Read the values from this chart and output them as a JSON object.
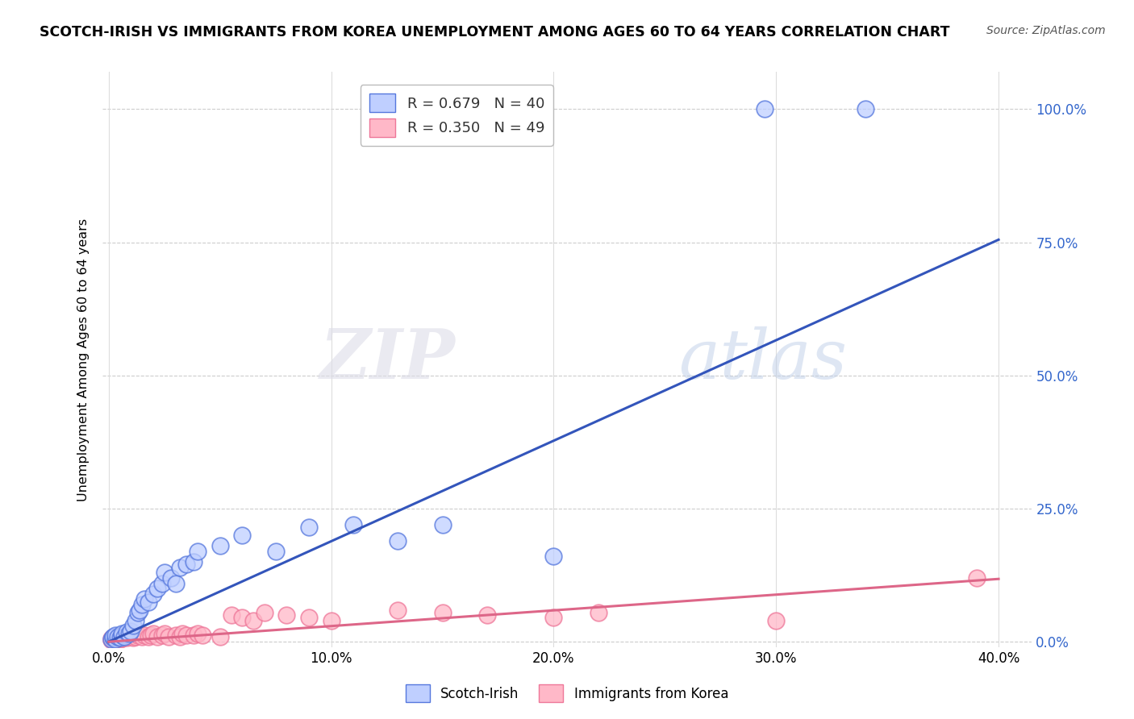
{
  "title": "SCOTCH-IRISH VS IMMIGRANTS FROM KOREA UNEMPLOYMENT AMONG AGES 60 TO 64 YEARS CORRELATION CHART",
  "source": "Source: ZipAtlas.com",
  "ylabel": "Unemployment Among Ages 60 to 64 years",
  "watermark_zip": "ZIP",
  "watermark_atlas": "atlas",
  "blue_color_face": "#BFCFFF",
  "blue_color_edge": "#5577DD",
  "pink_color_face": "#FFB8C8",
  "pink_color_edge": "#EE7799",
  "blue_line_color": "#3355BB",
  "pink_line_color": "#DD6688",
  "right_tick_color": "#3366CC",
  "scotch_irish_x": [
    0.001,
    0.002,
    0.002,
    0.003,
    0.003,
    0.004,
    0.005,
    0.006,
    0.006,
    0.007,
    0.008,
    0.009,
    0.01,
    0.011,
    0.012,
    0.013,
    0.014,
    0.015,
    0.016,
    0.018,
    0.02,
    0.022,
    0.024,
    0.025,
    0.028,
    0.03,
    0.032,
    0.035,
    0.038,
    0.04,
    0.05,
    0.06,
    0.075,
    0.09,
    0.11,
    0.13,
    0.15,
    0.2,
    0.295,
    0.34
  ],
  "scotch_irish_y": [
    0.005,
    0.008,
    0.01,
    0.005,
    0.012,
    0.01,
    0.008,
    0.012,
    0.015,
    0.01,
    0.018,
    0.015,
    0.02,
    0.03,
    0.04,
    0.055,
    0.06,
    0.07,
    0.08,
    0.075,
    0.09,
    0.1,
    0.11,
    0.13,
    0.12,
    0.11,
    0.14,
    0.145,
    0.15,
    0.17,
    0.18,
    0.2,
    0.17,
    0.215,
    0.22,
    0.19,
    0.22,
    0.16,
    1.0,
    1.0
  ],
  "korea_x": [
    0.001,
    0.001,
    0.002,
    0.002,
    0.003,
    0.003,
    0.004,
    0.004,
    0.005,
    0.005,
    0.006,
    0.007,
    0.008,
    0.009,
    0.01,
    0.011,
    0.012,
    0.013,
    0.015,
    0.016,
    0.018,
    0.019,
    0.02,
    0.022,
    0.024,
    0.025,
    0.027,
    0.03,
    0.032,
    0.033,
    0.035,
    0.038,
    0.04,
    0.042,
    0.05,
    0.055,
    0.06,
    0.065,
    0.07,
    0.08,
    0.09,
    0.1,
    0.13,
    0.15,
    0.17,
    0.2,
    0.22,
    0.3,
    0.39
  ],
  "korea_y": [
    0.003,
    0.006,
    0.005,
    0.008,
    0.004,
    0.009,
    0.006,
    0.01,
    0.005,
    0.008,
    0.007,
    0.01,
    0.008,
    0.01,
    0.012,
    0.008,
    0.01,
    0.012,
    0.01,
    0.012,
    0.01,
    0.012,
    0.015,
    0.01,
    0.013,
    0.015,
    0.01,
    0.012,
    0.01,
    0.015,
    0.013,
    0.012,
    0.015,
    0.013,
    0.01,
    0.05,
    0.045,
    0.04,
    0.055,
    0.05,
    0.045,
    0.04,
    0.06,
    0.055,
    0.05,
    0.045,
    0.055,
    0.04,
    0.12
  ],
  "blue_trend_x": [
    0.0,
    0.4
  ],
  "blue_trend_y": [
    0.0,
    0.755
  ],
  "pink_trend_x": [
    0.0,
    0.4
  ],
  "pink_trend_y": [
    0.0,
    0.118
  ],
  "xlim": [
    -0.003,
    0.415
  ],
  "ylim": [
    -0.01,
    1.07
  ],
  "xticks": [
    0.0,
    0.1,
    0.2,
    0.3,
    0.4
  ],
  "xtick_labels": [
    "0.0%",
    "10.0%",
    "20.0%",
    "30.0%",
    "40.0%"
  ],
  "yticks": [
    0.0,
    0.25,
    0.5,
    0.75,
    1.0
  ],
  "ytick_labels": [
    "0.0%",
    "25.0%",
    "50.0%",
    "75.0%",
    "100.0%"
  ],
  "legend1_label": "R = 0.679   N = 40",
  "legend2_label": "R = 0.350   N = 49",
  "bottom_legend1": "Scotch-Irish",
  "bottom_legend2": "Immigrants from Korea"
}
